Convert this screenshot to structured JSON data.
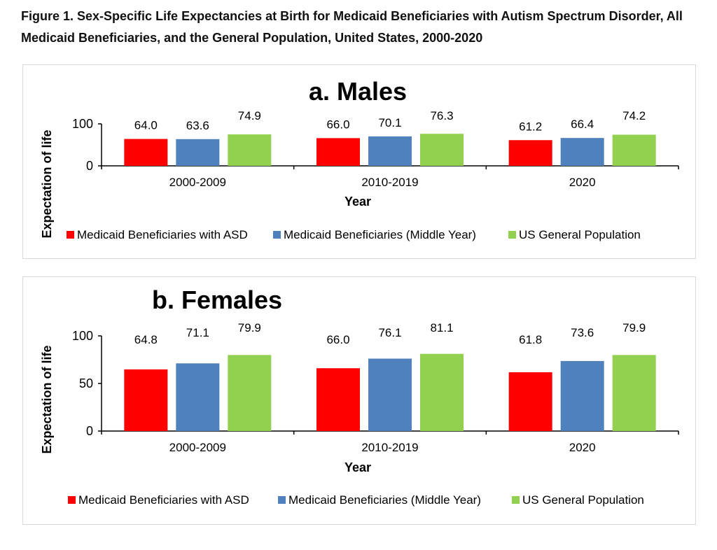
{
  "figure_title": "Figure 1. Sex-Specific Life Expectancies at Birth for Medicaid Beneficiaries with Autism Spectrum Disorder, All Medicaid Beneficiaries, and the General Population, United States, 2000-2020",
  "colors": {
    "asd": "#ff0000",
    "medicaid": "#4f81bd",
    "us": "#92d050"
  },
  "chart_data": [
    {
      "type": "bar",
      "title": "a. Males",
      "xlabel": "Year",
      "ylabel": "Expectation of life",
      "ylim": [
        0,
        100
      ],
      "yticks": [
        "0",
        "100"
      ],
      "categories": [
        "2000-2009",
        "2010-2019",
        "2020"
      ],
      "series": [
        {
          "name": "Medicaid Beneficiaries with ASD",
          "values": [
            64.0,
            66.0,
            61.2
          ],
          "labels": [
            "64.0",
            "66.0",
            "61.2"
          ]
        },
        {
          "name": "Medicaid Beneficiaries (Middle Year)",
          "values": [
            63.6,
            70.1,
            66.4
          ],
          "labels": [
            "63.6",
            "70.1",
            "66.4"
          ]
        },
        {
          "name": "US General Population",
          "values": [
            74.9,
            76.3,
            74.2
          ],
          "labels": [
            "74.9",
            "76.3",
            "74.2"
          ]
        }
      ],
      "legend_position": "bottom",
      "grid": false
    },
    {
      "type": "bar",
      "title": "b. Females",
      "xlabel": "Year",
      "ylabel": "Expectation of life",
      "ylim": [
        0,
        100
      ],
      "yticks": [
        "0",
        "50",
        "100"
      ],
      "categories": [
        "2000-2009",
        "2010-2019",
        "2020"
      ],
      "series": [
        {
          "name": "Medicaid Beneficiaries with ASD",
          "values": [
            64.8,
            66.0,
            61.8
          ],
          "labels": [
            "64.8",
            "66.0",
            "61.8"
          ]
        },
        {
          "name": "Medicaid Beneficiaries (Middle Year)",
          "values": [
            71.1,
            76.1,
            73.6
          ],
          "labels": [
            "71.1",
            "76.1",
            "73.6"
          ]
        },
        {
          "name": "US General Population",
          "values": [
            79.9,
            81.1,
            79.9
          ],
          "labels": [
            "79.9",
            "81.1",
            "79.9"
          ]
        }
      ],
      "legend_position": "bottom",
      "grid": false
    }
  ]
}
